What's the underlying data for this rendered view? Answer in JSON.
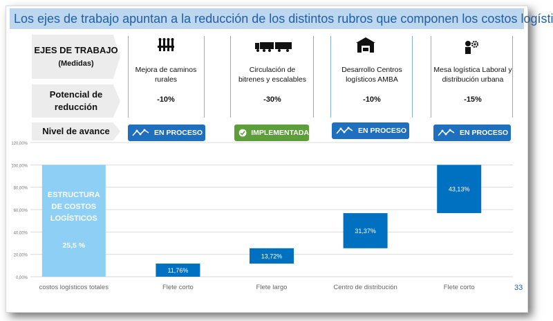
{
  "title": "Los ejes de trabajo apuntan a la reducción de los distintos rubros que componen los costos logísticos",
  "row_labels": {
    "ejes": "EJES DE TRABAJO",
    "medidas": "(Medidas)",
    "potencial_line1": "Potencial de",
    "potencial_line2": "reducción",
    "nivel": "Nivel de avance"
  },
  "columns": [
    {
      "icon": "road-barrier-icon",
      "line1": "Mejora de caminos",
      "line2": "rurales",
      "pct": "-10%",
      "status": "EN PROCESO",
      "status_icon": "trend-line-icon",
      "status_color": "#1f6fbf"
    },
    {
      "icon": "truck-icon",
      "line1": "Circulación de",
      "line2": "bitrenes y escalables",
      "pct": "-30%",
      "status": "IMPLEMENTADA",
      "status_icon": "check-badge-icon",
      "status_color": "#5c9e3a"
    },
    {
      "icon": "warehouse-icon",
      "line1": "Desarrollo Centros",
      "line2": "logísticos AMBA",
      "pct": "-10%",
      "status": "EN PROCESO",
      "status_icon": "trend-line-icon",
      "status_color": "#1f6fbf"
    },
    {
      "icon": "worker-gear-icon",
      "line1": "Mesa logística Laboral y",
      "line2": "distribución urbana",
      "pct": "-15%",
      "status": "EN PROCESO",
      "status_icon": "trend-line-icon",
      "status_color": "#1f6fbf"
    }
  ],
  "page_number": "33",
  "chart_data": {
    "type": "bar",
    "subtype": "waterfall",
    "ylim": [
      0,
      120
    ],
    "y_ticks": [
      "0,00%",
      "20,00%",
      "40,00%",
      "60,00%",
      "80,00%",
      "100,00%",
      "120,00%"
    ],
    "categories": [
      "costos logísticos totales",
      "Flete corto",
      "Flete largo",
      "Centro de distribución",
      "Flete corto"
    ],
    "bars": [
      {
        "start": 0,
        "end": 100,
        "label_lines": [
          "ESTRUCTURA",
          "DE COSTOS",
          "LOGÍSTICOS"
        ],
        "value_label": "25,5 %",
        "color": "#8ecff5"
      },
      {
        "start": 0,
        "end": 11.76,
        "value_label": "11,76%",
        "color": "#0070c0"
      },
      {
        "start": 11.76,
        "end": 25.48,
        "value_label": "13,72%",
        "color": "#0070c0"
      },
      {
        "start": 25.48,
        "end": 56.85,
        "value_label": "31,37%",
        "color": "#0070c0"
      },
      {
        "start": 56.85,
        "end": 99.98,
        "value_label": "43,13%",
        "color": "#0070c0"
      }
    ],
    "grid": true
  }
}
